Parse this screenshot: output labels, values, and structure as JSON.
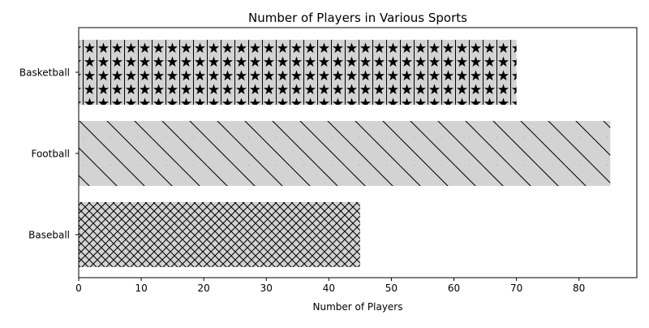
{
  "chart_data": {
    "type": "bar",
    "orientation": "horizontal",
    "title": "Number of Players in Various Sports",
    "xlabel": "Number of Players",
    "ylabel": "",
    "categories": [
      "Baseball",
      "Football",
      "Basketball"
    ],
    "values": [
      45,
      85,
      70
    ],
    "xlim": [
      0,
      89.25
    ],
    "xticks": [
      0,
      10,
      20,
      30,
      40,
      50,
      60,
      70,
      80
    ],
    "bar_fill": "#d3d3d3",
    "hatch_color": "#000000",
    "hatches": [
      "crosshatch",
      "diagonal-backslash",
      "stars-and-vertical-lines"
    ],
    "grid": false,
    "legend": "none"
  }
}
